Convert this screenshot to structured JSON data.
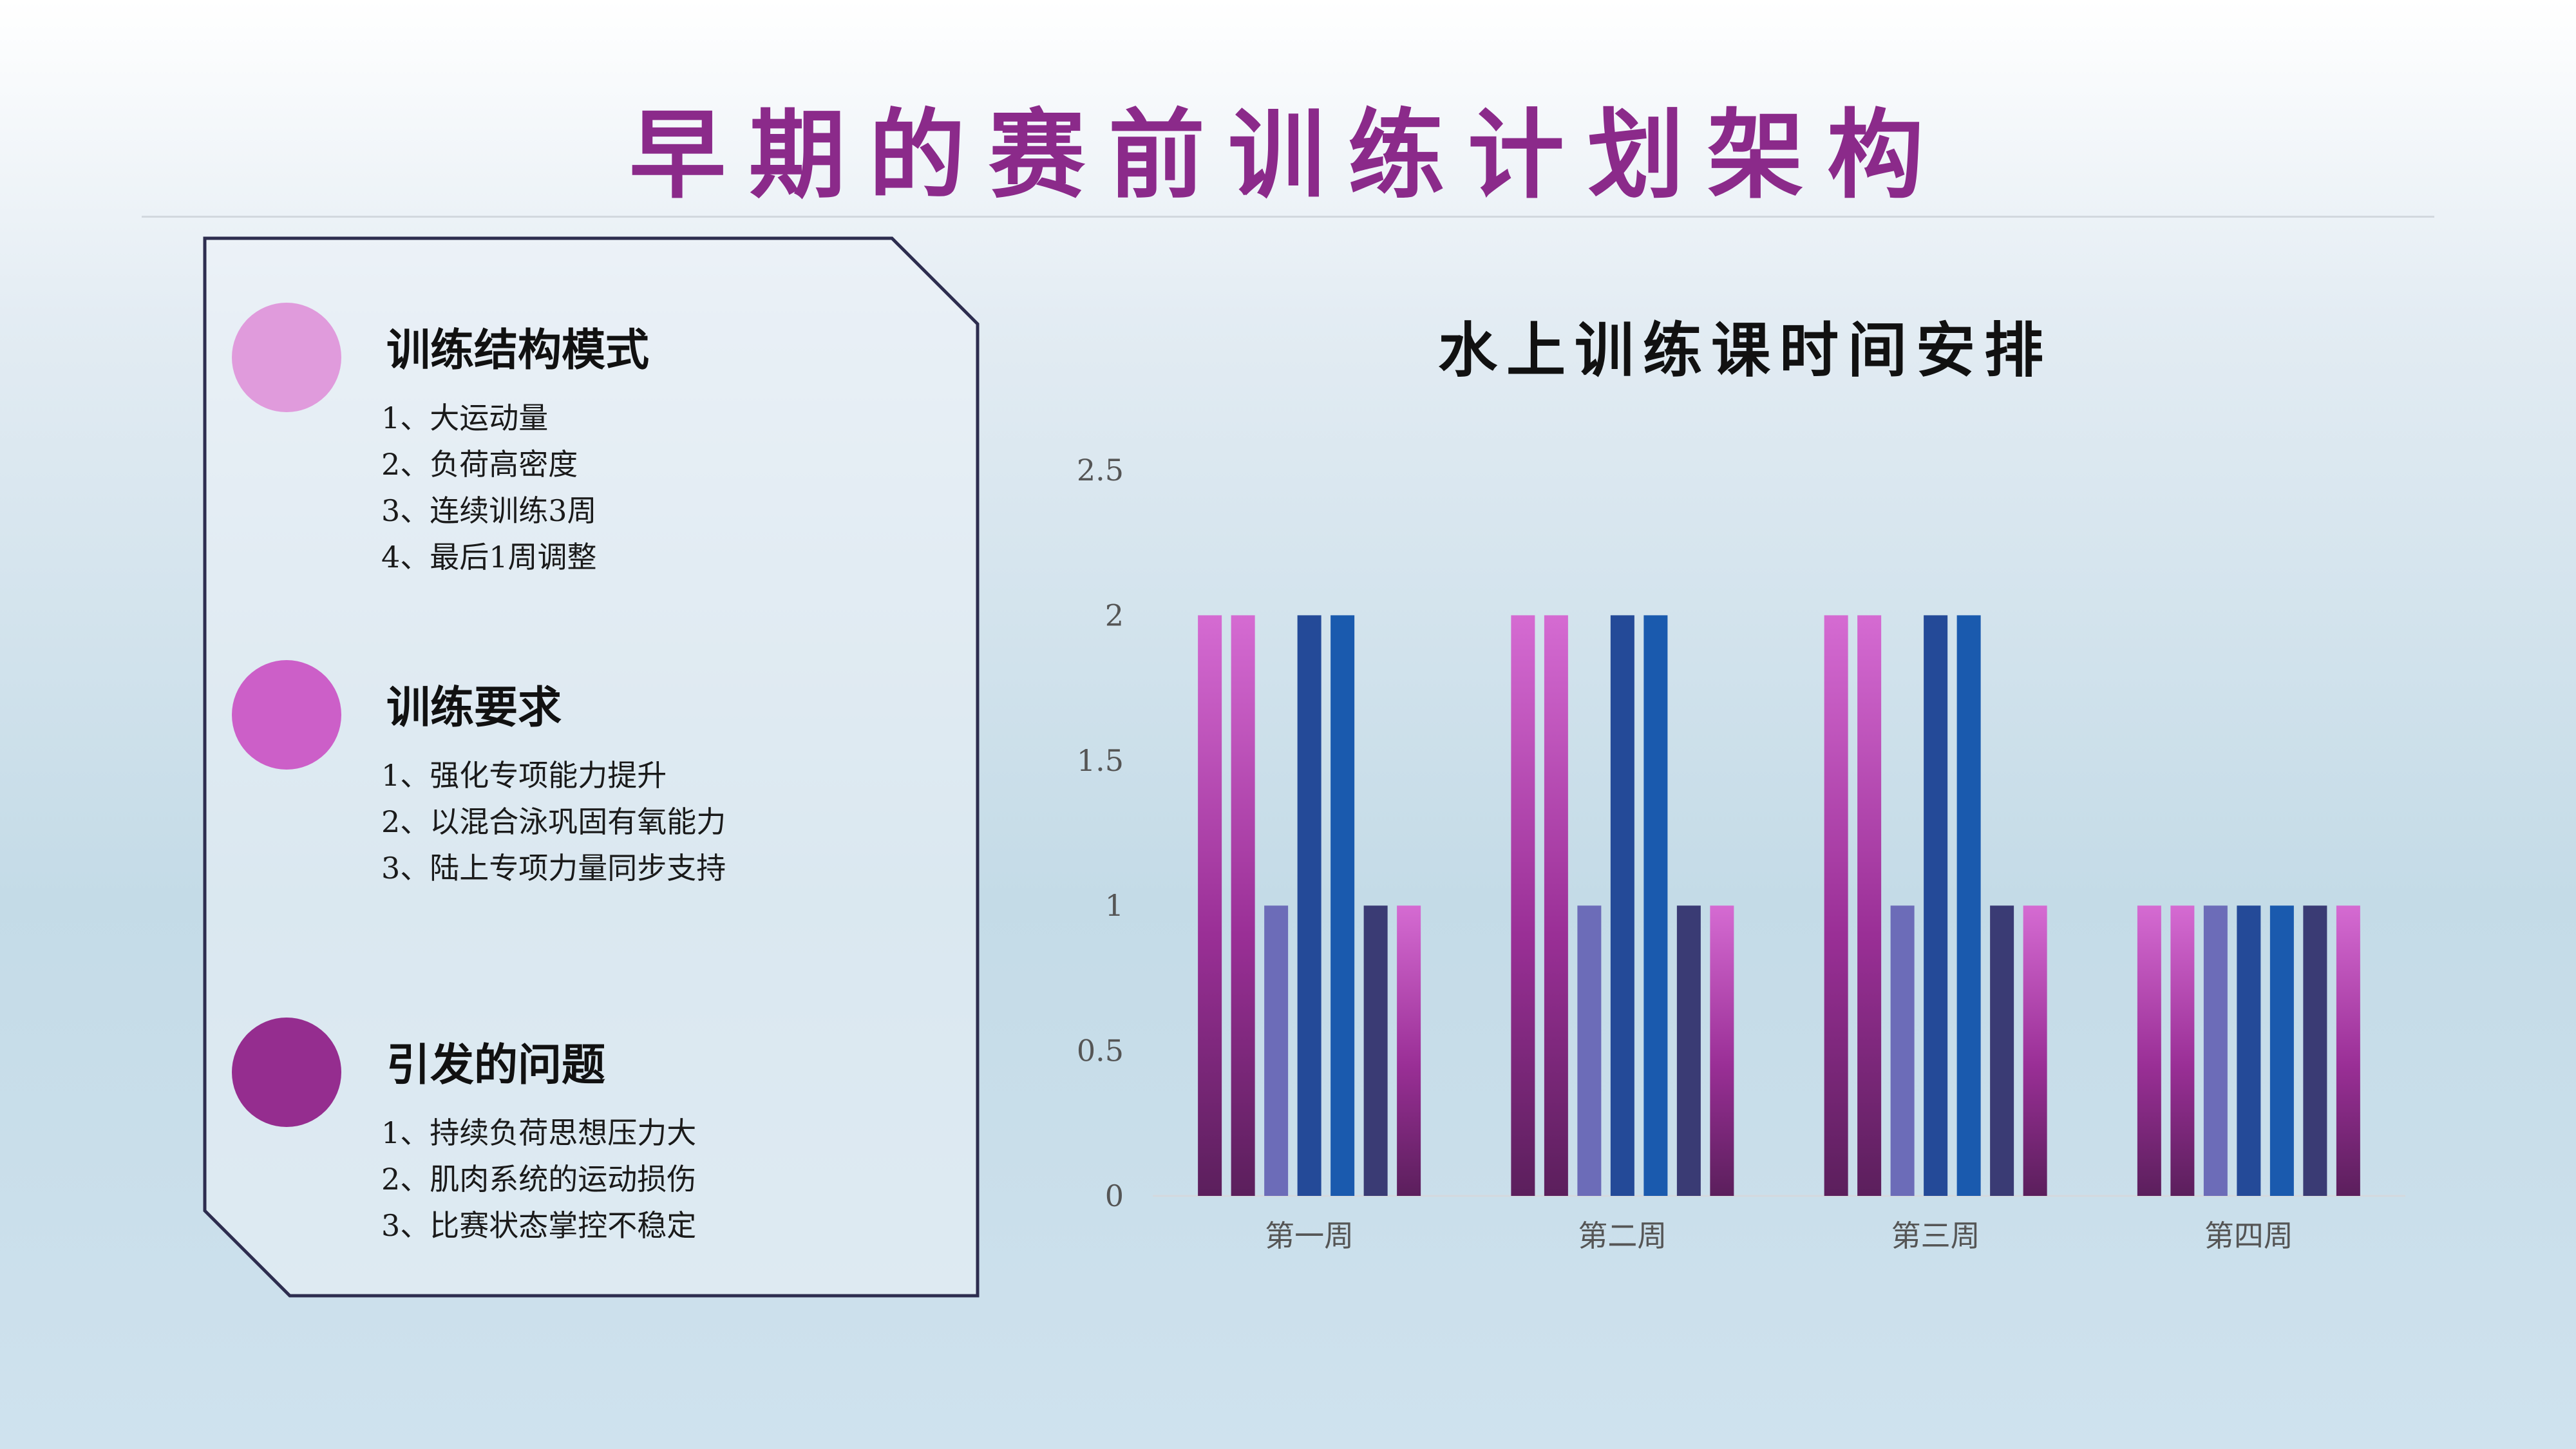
{
  "title": "早期的赛前训练计划架构",
  "sections": [
    {
      "heading": "训练结构模式",
      "color": "#e09bdc",
      "items": [
        "1、大运动量",
        "2、负荷高密度",
        "3、连续训练3周",
        "4、最后1周调整"
      ]
    },
    {
      "heading": "训练要求",
      "color": "#cc5fc8",
      "items": [
        "1、强化专项能力提升",
        "2、以混合泳巩固有氧能力",
        "3、陆上专项力量同步支持"
      ]
    },
    {
      "heading": "引发的问题",
      "color": "#952d8f",
      "items": [
        "1、持续负荷思想压力大",
        "2、肌肉系统的运动损伤",
        "3、比赛状态掌控不稳定"
      ]
    }
  ],
  "chart_data": {
    "type": "bar",
    "title": "水上训练课时间安排",
    "categories": [
      "第一周",
      "第二周",
      "第三周",
      "第四周"
    ],
    "series": [
      {
        "values": [
          2,
          2,
          2,
          1
        ],
        "color": "gradient-magenta"
      },
      {
        "values": [
          2,
          2,
          2,
          1
        ],
        "color": "gradient-magenta"
      },
      {
        "values": [
          1,
          1,
          1,
          1
        ],
        "color": "#6c6cb8"
      },
      {
        "values": [
          2,
          2,
          2,
          1
        ],
        "color": "#244a98"
      },
      {
        "values": [
          2,
          2,
          2,
          1
        ],
        "color": "#1a5aae"
      },
      {
        "values": [
          1,
          1,
          1,
          1
        ],
        "color": "#3a3b74"
      },
      {
        "values": [
          1,
          1,
          1,
          1
        ],
        "color": "gradient-magenta"
      }
    ],
    "ylim": [
      0,
      2.5
    ],
    "yticks": [
      "0",
      "0.5",
      "1",
      "1.5",
      "2",
      "2.5"
    ],
    "grid": false,
    "legend": "none"
  }
}
